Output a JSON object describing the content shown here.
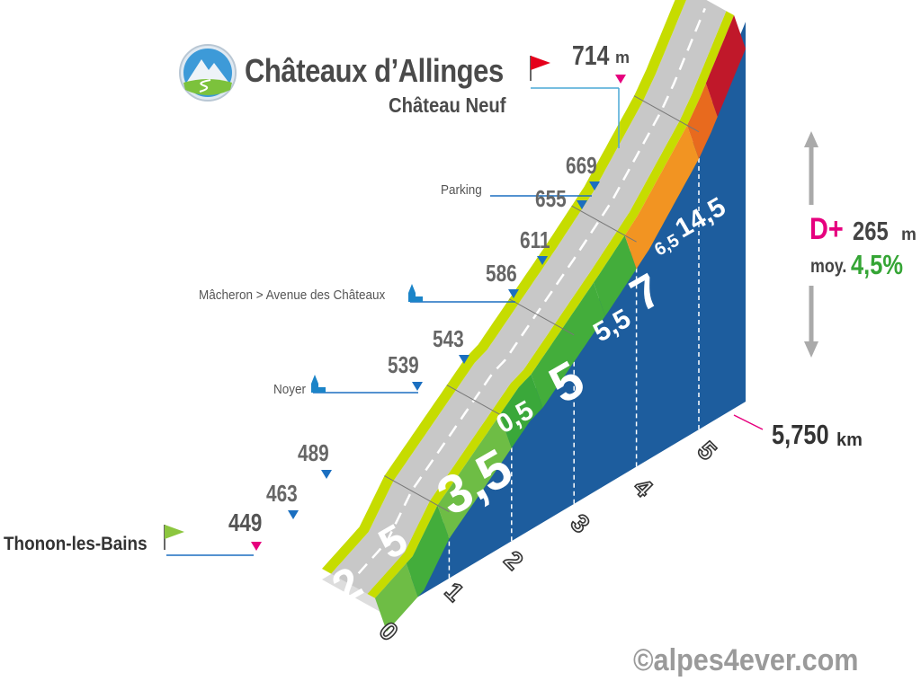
{
  "header": {
    "title": "Châteaux d’Allinges",
    "subtitle": "Château Neuf",
    "summit_altitude": "714",
    "summit_unit": "m"
  },
  "start": {
    "name": "Thonon-les-Bains",
    "altitude": "449"
  },
  "distance": {
    "value": "5,750",
    "unit": "km"
  },
  "summary": {
    "dplus_label": "D+",
    "dplus_value": "265",
    "dplus_unit": "m",
    "avg_label": "moy.",
    "avg_value": "4,5%"
  },
  "waypoints": [
    {
      "name": "",
      "altitude": "463"
    },
    {
      "name": "",
      "altitude": "489"
    },
    {
      "name": "Noyer",
      "altitude": "539"
    },
    {
      "name": "",
      "altitude": "543"
    },
    {
      "name": "Mâcheron > Avenue des Châteaux",
      "altitude": "586"
    },
    {
      "name": "",
      "altitude": "611"
    },
    {
      "name": "Parking",
      "altitude": "655"
    },
    {
      "name": "",
      "altitude": "669"
    }
  ],
  "copyright": "©alpes4ever.com",
  "colors": {
    "blue_side": "#1d5d9e",
    "road_grey": "#c8c8c8",
    "road_edge": "#c6dc00",
    "magenta": "#e6007e",
    "green_flag": "#8cc63f",
    "red_flag": "#e5001b",
    "marker_blue": "#1b6fc0"
  },
  "chart_data": {
    "type": "area",
    "title": "Châteaux d’Allinges",
    "subtitle": "Château Neuf",
    "xlabel": "",
    "ylabel": "",
    "x_unit": "km",
    "y_unit": "m",
    "x_ticks": [
      "0",
      "1",
      "2",
      "3",
      "4",
      "5"
    ],
    "xlim": [
      0,
      5.75
    ],
    "profile": [
      {
        "km": 0,
        "alt": 449
      },
      {
        "km": 0.6,
        "alt": 463
      },
      {
        "km": 1.0,
        "alt": 489
      },
      {
        "km": 2.3,
        "alt": 539
      },
      {
        "km": 2.5,
        "alt": 543
      },
      {
        "km": 3.6,
        "alt": 586
      },
      {
        "km": 4.2,
        "alt": 611
      },
      {
        "km": 5.0,
        "alt": 655
      },
      {
        "km": 5.2,
        "alt": 669
      },
      {
        "km": 5.75,
        "alt": 714
      }
    ],
    "segments": [
      {
        "from_km": 0,
        "to_km": 0.5,
        "gradient": "2"
      },
      {
        "from_km": 0.5,
        "to_km": 1.0,
        "gradient": "5"
      },
      {
        "from_km": 1.0,
        "to_km": 2.0,
        "gradient": "3,5"
      },
      {
        "from_km": 2.0,
        "to_km": 2.5,
        "gradient": "0,5"
      },
      {
        "from_km": 2.5,
        "to_km": 3.5,
        "gradient": "5"
      },
      {
        "from_km": 3.5,
        "to_km": 4.0,
        "gradient": "5,5"
      },
      {
        "from_km": 4.0,
        "to_km": 5.0,
        "gradient": "7"
      },
      {
        "from_km": 5.0,
        "to_km": 5.3,
        "gradient": "6,5"
      },
      {
        "from_km": 5.3,
        "to_km": 5.75,
        "gradient": "14,5"
      }
    ]
  }
}
